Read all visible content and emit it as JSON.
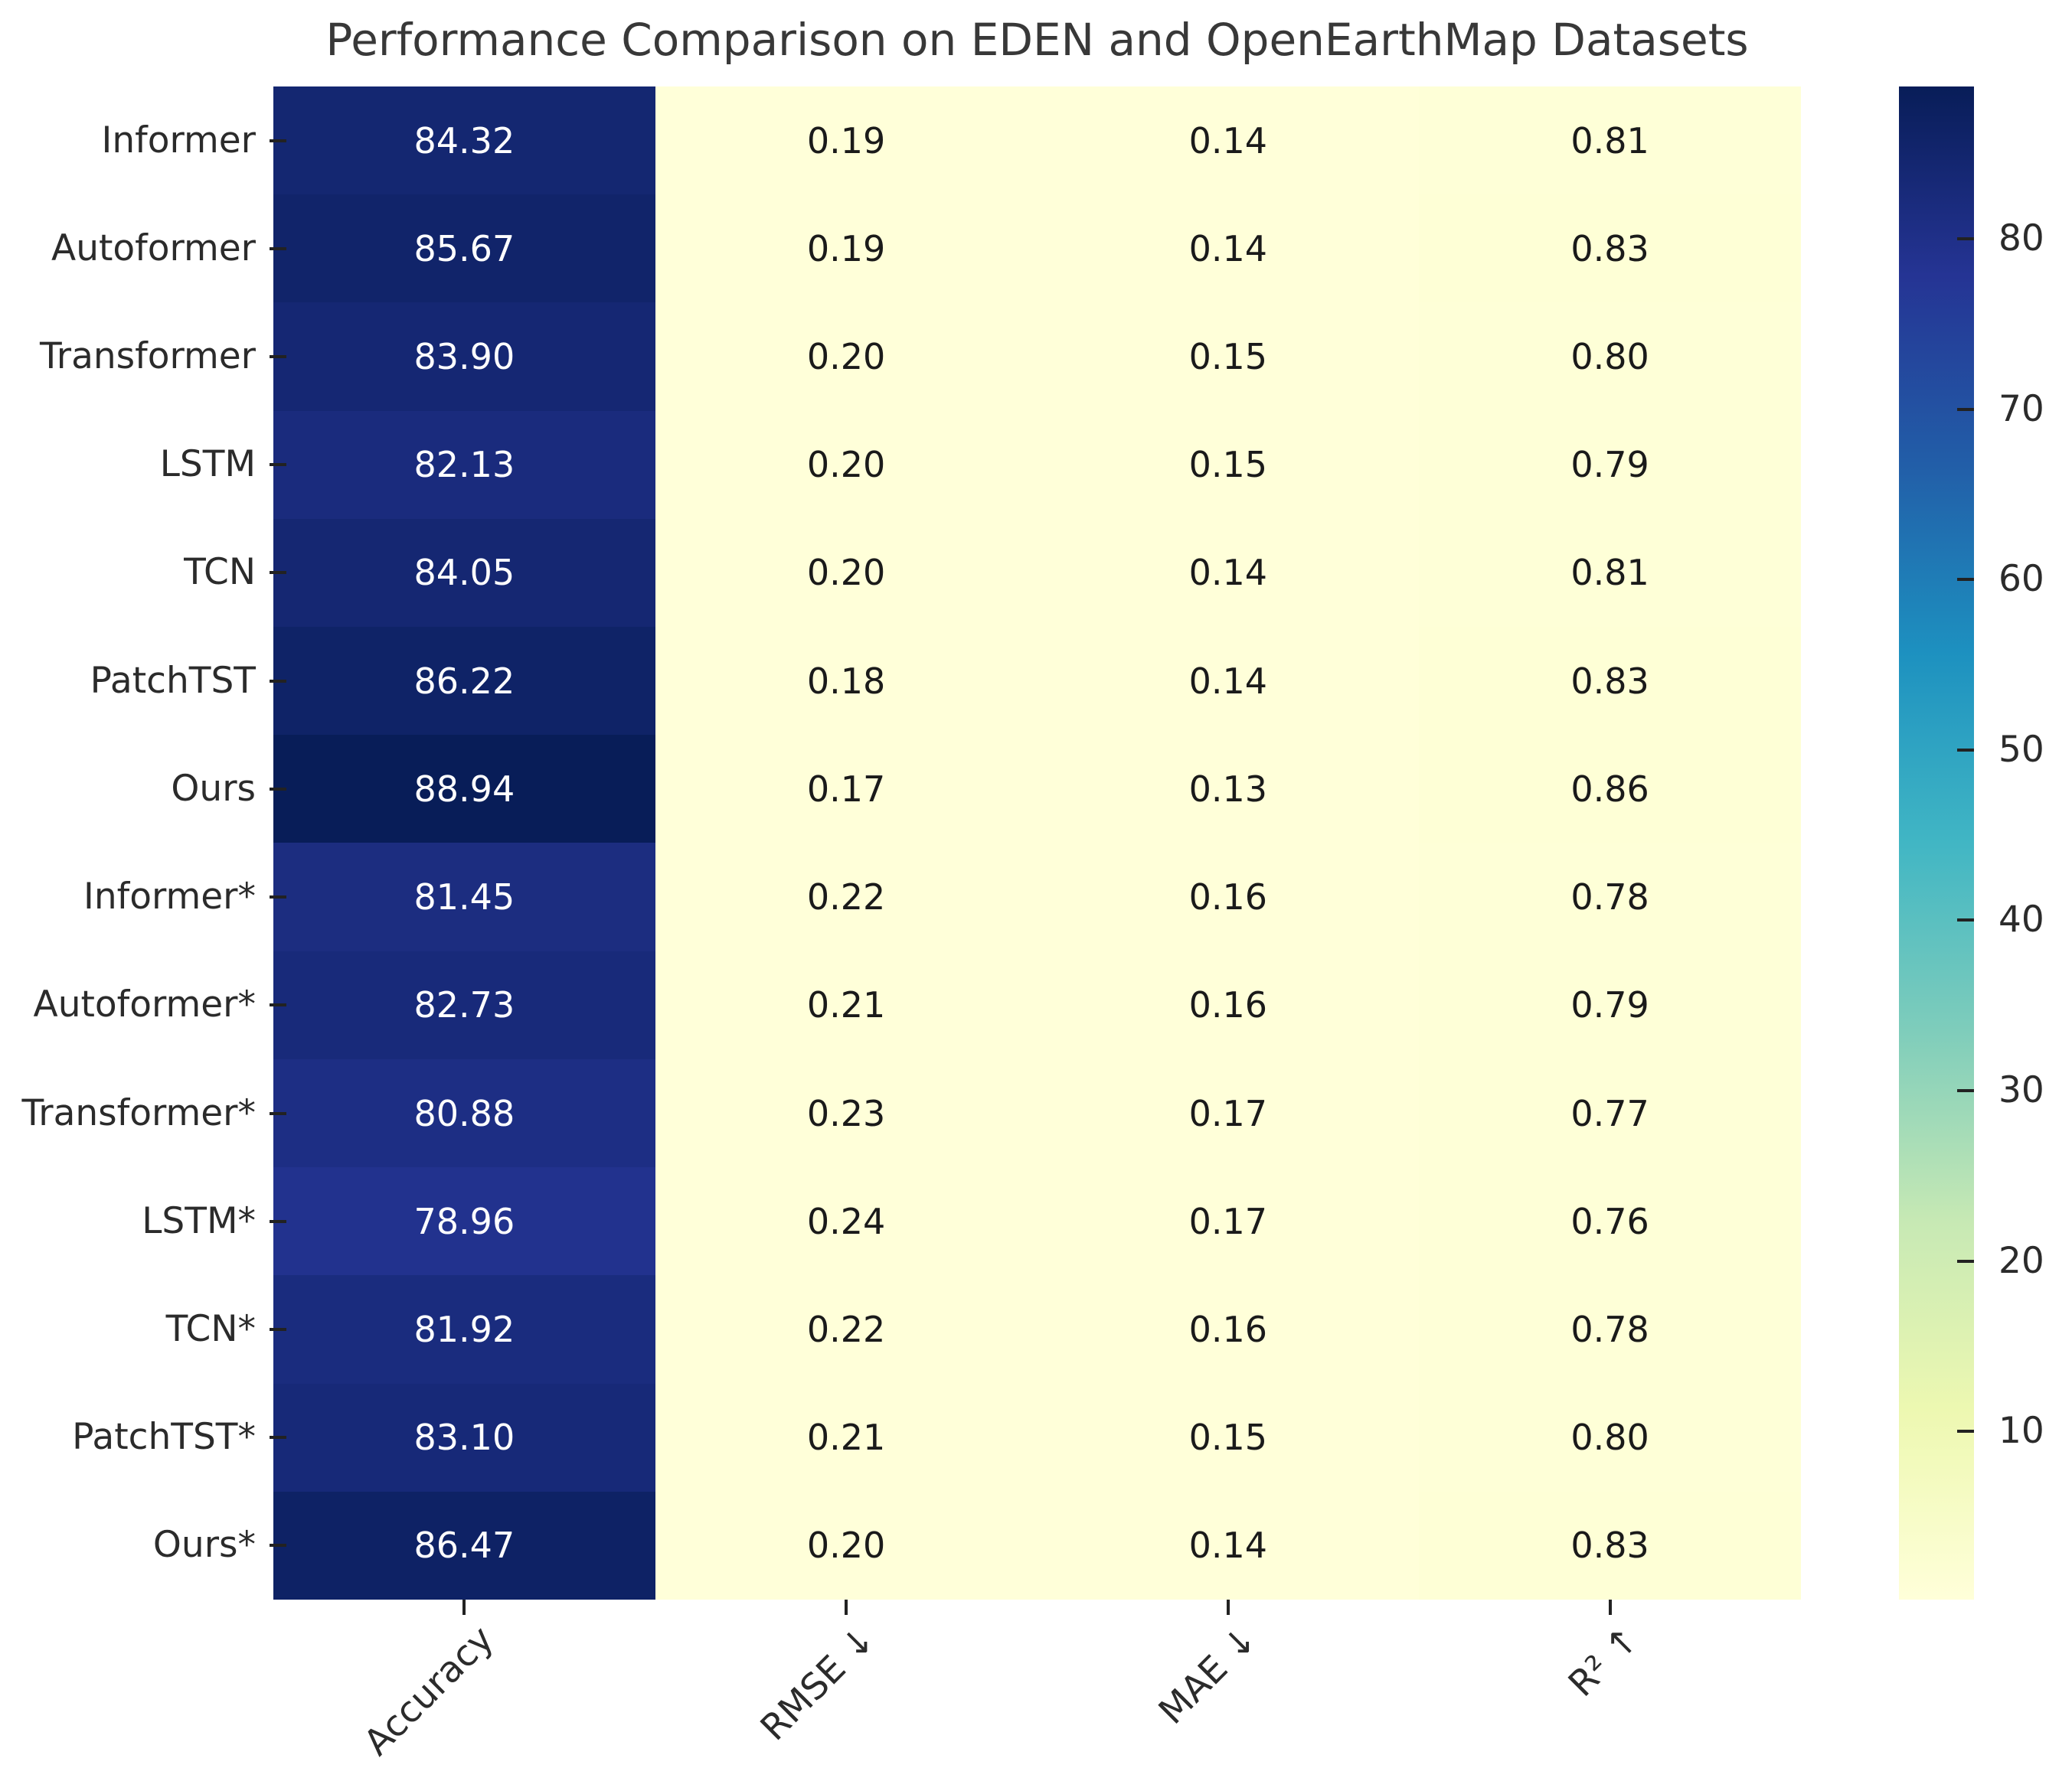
{
  "chart_data": {
    "type": "heatmap",
    "title": "Performance Comparison on EDEN and OpenEarthMap Datasets",
    "rows": [
      "Informer",
      "Autoformer",
      "Transformer",
      "LSTM",
      "TCN",
      "PatchTST",
      "Ours",
      "Informer*",
      "Autoformer*",
      "Transformer*",
      "LSTM*",
      "TCN*",
      "PatchTST*",
      "Ours*"
    ],
    "columns": [
      "Accuracy",
      "RMSE ↓",
      "MAE ↓",
      "R² ↑"
    ],
    "values": [
      [
        84.32,
        0.19,
        0.14,
        0.81
      ],
      [
        85.67,
        0.19,
        0.14,
        0.83
      ],
      [
        83.9,
        0.2,
        0.15,
        0.8
      ],
      [
        82.13,
        0.2,
        0.15,
        0.79
      ],
      [
        84.05,
        0.2,
        0.14,
        0.81
      ],
      [
        86.22,
        0.18,
        0.14,
        0.83
      ],
      [
        88.94,
        0.17,
        0.13,
        0.86
      ],
      [
        81.45,
        0.22,
        0.16,
        0.78
      ],
      [
        82.73,
        0.21,
        0.16,
        0.79
      ],
      [
        80.88,
        0.23,
        0.17,
        0.77
      ],
      [
        78.96,
        0.24,
        0.17,
        0.76
      ],
      [
        81.92,
        0.22,
        0.16,
        0.78
      ],
      [
        83.1,
        0.21,
        0.15,
        0.8
      ],
      [
        86.47,
        0.2,
        0.14,
        0.83
      ]
    ],
    "value_format_decimals": 2,
    "color_scale": {
      "vmin": 0.13,
      "vmax": 88.94,
      "colormap_name": "YlGnBu",
      "anchors": [
        [
          0.0,
          "#ffffd9"
        ],
        [
          0.125,
          "#edf8b1"
        ],
        [
          0.25,
          "#c7e9b4"
        ],
        [
          0.375,
          "#7fcdbb"
        ],
        [
          0.5,
          "#41b6c4"
        ],
        [
          0.625,
          "#1d91c0"
        ],
        [
          0.75,
          "#225ea8"
        ],
        [
          0.875,
          "#253494"
        ],
        [
          1.0,
          "#081d58"
        ]
      ]
    },
    "colorbar": {
      "position": "right",
      "tick_values": [
        80,
        70,
        60,
        50,
        40,
        30,
        20,
        10
      ]
    },
    "grid": false,
    "colors": {
      "background": "#ffffff",
      "title_text": "#383838",
      "axis_text": "#2b2b2b",
      "tick_mark": "#222222",
      "annotation_on_dark": "#ffffff",
      "annotation_on_light": "#1a1a1a"
    }
  }
}
